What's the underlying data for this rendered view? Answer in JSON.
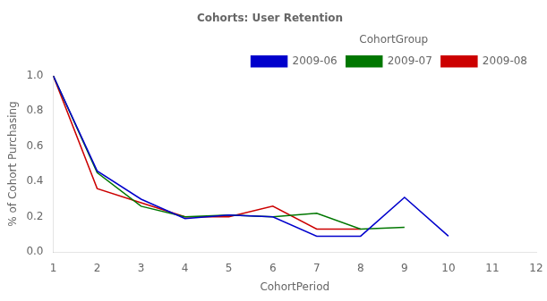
{
  "chart_data": {
    "type": "line",
    "title": "Cohorts: User Retention",
    "xlabel": "CohortPeriod",
    "ylabel": "% of Cohort Purchasing",
    "legend_title": "CohortGroup",
    "legend": "upper right",
    "grid": false,
    "xlim": [
      1,
      12
    ],
    "ylim": [
      0,
      1
    ],
    "xticks": [
      1,
      2,
      3,
      4,
      5,
      6,
      7,
      8,
      9,
      10,
      11,
      12
    ],
    "yticks": [
      {
        "value": 0,
        "label": "0.0"
      },
      0.2,
      0.4,
      0.6,
      0.8,
      {
        "value": 1,
        "label": "1.0"
      }
    ],
    "series": [
      {
        "name": "2009-06",
        "color": "#0000cc",
        "x": [
          1,
          2,
          3,
          4,
          5,
          6,
          7,
          8,
          9,
          10
        ],
        "values": [
          1.0,
          0.46,
          0.3,
          0.19,
          0.21,
          0.2,
          0.09,
          0.09,
          0.31,
          0.09
        ]
      },
      {
        "name": "2009-07",
        "color": "#007700",
        "x": [
          1,
          2,
          3,
          4,
          5,
          6,
          7,
          8,
          9
        ],
        "values": [
          1.0,
          0.45,
          0.26,
          0.2,
          0.21,
          0.2,
          0.22,
          0.13,
          0.14
        ]
      },
      {
        "name": "2009-08",
        "color": "#cc0000",
        "x": [
          1,
          2,
          3,
          4,
          5,
          6,
          7,
          8
        ],
        "values": [
          1.0,
          0.36,
          0.28,
          0.2,
          0.2,
          0.26,
          0.13,
          0.13
        ]
      }
    ]
  }
}
